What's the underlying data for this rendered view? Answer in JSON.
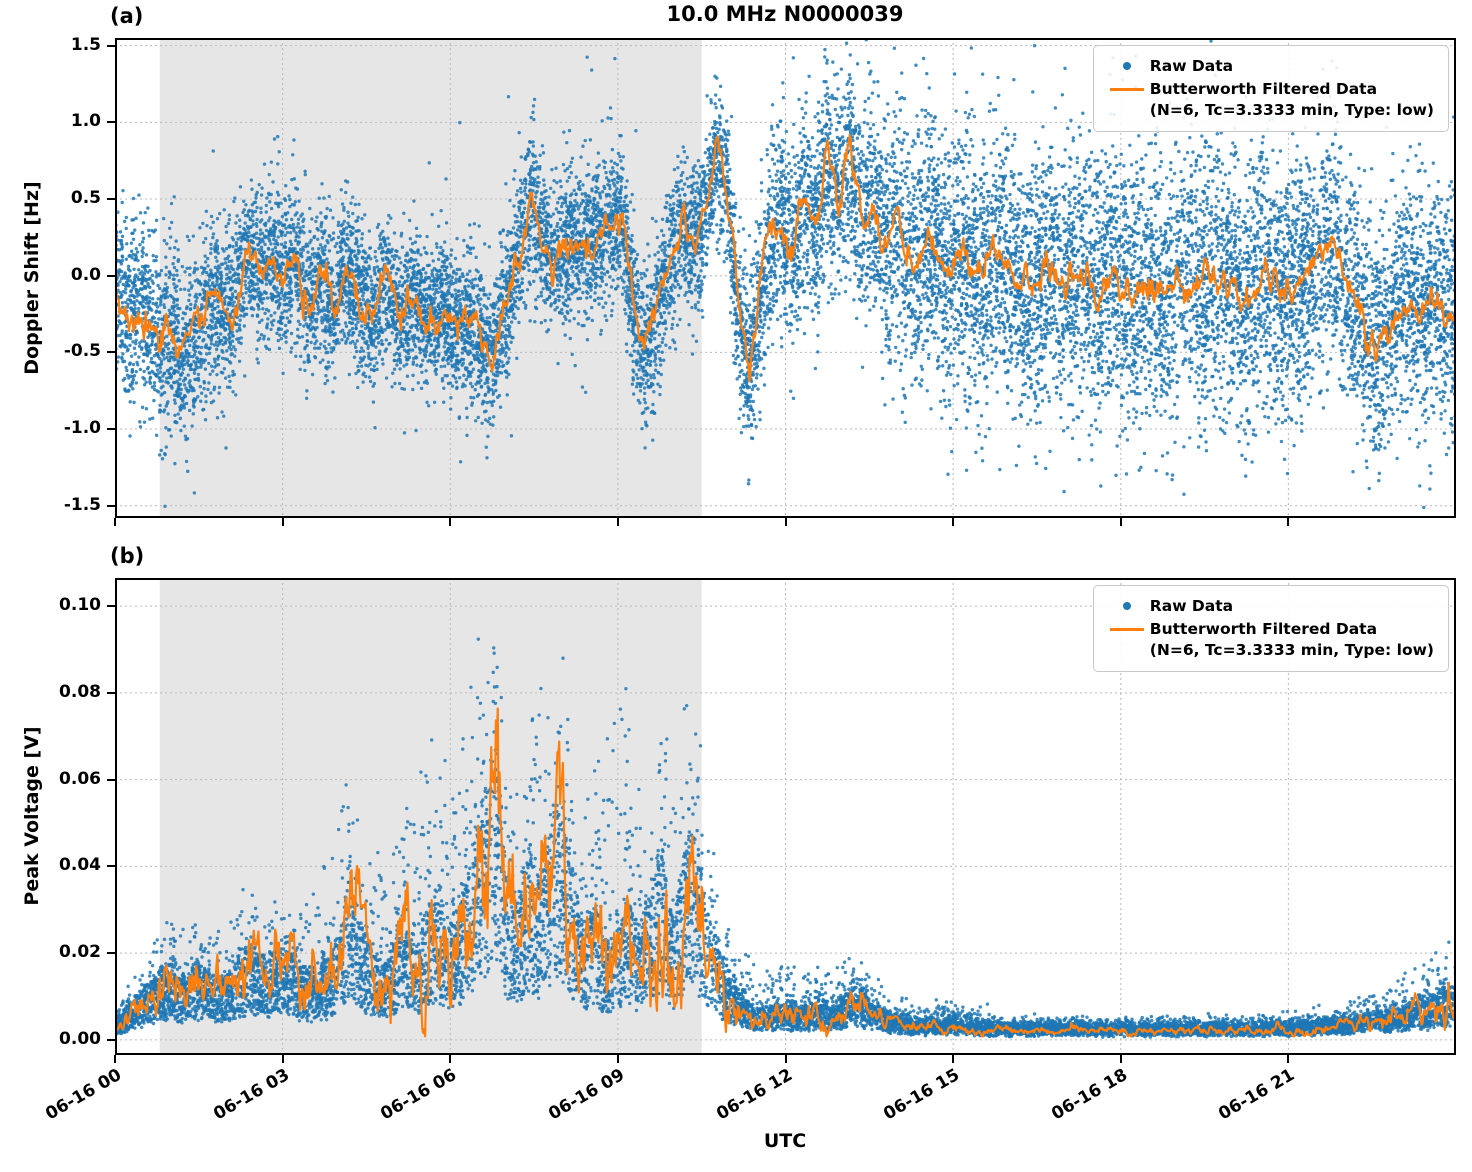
{
  "figure": {
    "title": "10.0 MHz N0000039",
    "panel_a_label": "(a)",
    "panel_b_label": "(b)",
    "xlabel": "UTC",
    "colors": {
      "raw": "#1f77b4",
      "filtered": "#ff7f0e",
      "shade": "#e6e6e6",
      "grid": "#b9b9b9",
      "text": "#000000"
    },
    "legend": {
      "raw_label": "Raw Data",
      "filtered_label": "Butterworth Filtered Data",
      "filtered_sublabel": "(N=6, Tc=3.3333 min, Type: low)"
    }
  },
  "chart_data": [
    {
      "type": "scatter",
      "panel": "a",
      "title": "10.0 MHz N0000039",
      "ylabel": "Doppler Shift [Hz]",
      "xlabel": "UTC",
      "xlim_hours": [
        0,
        24
      ],
      "ylim": [
        -1.58,
        1.55
      ],
      "yticks": [
        -1.5,
        -1.0,
        -0.5,
        0.0,
        0.5,
        1.0,
        1.5
      ],
      "ytick_labels": [
        "-1.5",
        "-1.0",
        "-0.5",
        "0.0",
        "0.5",
        "1.0",
        "1.5"
      ],
      "xticks_hours": [
        0,
        3,
        6,
        9,
        12,
        15,
        18,
        21
      ],
      "xtick_labels": [],
      "grid": true,
      "legend_position": "upper right",
      "shaded_region_hours": [
        0.8,
        10.5
      ],
      "series": [
        {
          "name": "Raw Data",
          "type": "scatter",
          "color": "#1f77b4",
          "n": 16000,
          "seed": 42,
          "dist": "gaussian",
          "spread_envelope": [
            [
              0,
              0.3
            ],
            [
              1,
              0.32
            ],
            [
              2,
              0.27
            ],
            [
              3,
              0.25
            ],
            [
              4,
              0.24
            ],
            [
              5,
              0.23
            ],
            [
              6,
              0.24
            ],
            [
              7,
              0.25
            ],
            [
              8,
              0.25
            ],
            [
              9,
              0.25
            ],
            [
              10,
              0.24
            ],
            [
              10.8,
              0.22
            ],
            [
              11.5,
              0.3
            ],
            [
              12,
              0.33
            ],
            [
              13,
              0.33
            ],
            [
              14,
              0.38
            ],
            [
              15,
              0.42
            ],
            [
              16,
              0.44
            ],
            [
              17,
              0.44
            ],
            [
              18,
              0.44
            ],
            [
              19,
              0.44
            ],
            [
              20,
              0.44
            ],
            [
              21,
              0.42
            ],
            [
              22,
              0.4
            ],
            [
              23,
              0.38
            ],
            [
              24,
              0.36
            ]
          ]
        },
        {
          "name": "Butterworth Filtered Data (N=6, Tc=3.3333 min, Type: low)",
          "type": "line",
          "color": "#ff7f0e",
          "jitter": 0.09,
          "jitter_mode": "add",
          "points": [
            [
              0,
              -0.08
            ],
            [
              0.3,
              -0.3
            ],
            [
              0.55,
              -0.2
            ],
            [
              0.8,
              -0.5
            ],
            [
              1.0,
              -0.38
            ],
            [
              1.2,
              -0.55
            ],
            [
              1.5,
              -0.3
            ],
            [
              1.8,
              -0.12
            ],
            [
              2.1,
              -0.25
            ],
            [
              2.35,
              0.18
            ],
            [
              2.6,
              0.02
            ],
            [
              2.8,
              0.15
            ],
            [
              3.0,
              -0.05
            ],
            [
              3.2,
              0.12
            ],
            [
              3.45,
              -0.18
            ],
            [
              3.7,
              0.0
            ],
            [
              3.9,
              -0.22
            ],
            [
              4.1,
              0.05
            ],
            [
              4.35,
              -0.12
            ],
            [
              4.6,
              -0.3
            ],
            [
              4.85,
              -0.05
            ],
            [
              5.1,
              -0.28
            ],
            [
              5.35,
              -0.12
            ],
            [
              5.6,
              -0.3
            ],
            [
              5.85,
              -0.18
            ],
            [
              6.1,
              -0.35
            ],
            [
              6.4,
              -0.3
            ],
            [
              6.7,
              -0.55
            ],
            [
              6.95,
              -0.25
            ],
            [
              7.2,
              0.12
            ],
            [
              7.45,
              0.5
            ],
            [
              7.65,
              0.25
            ],
            [
              7.85,
              0.02
            ],
            [
              8.1,
              0.22
            ],
            [
              8.35,
              0.15
            ],
            [
              8.6,
              0.28
            ],
            [
              8.85,
              0.35
            ],
            [
              9.05,
              0.42
            ],
            [
              9.25,
              -0.15
            ],
            [
              9.45,
              -0.5
            ],
            [
              9.65,
              -0.28
            ],
            [
              9.9,
              0.05
            ],
            [
              10.15,
              0.3
            ],
            [
              10.45,
              0.22
            ],
            [
              10.75,
              0.78
            ],
            [
              10.95,
              0.6
            ],
            [
              11.15,
              -0.2
            ],
            [
              11.35,
              -0.62
            ],
            [
              11.55,
              -0.1
            ],
            [
              11.75,
              0.25
            ],
            [
              11.95,
              0.35
            ],
            [
              12.15,
              0.18
            ],
            [
              12.35,
              0.55
            ],
            [
              12.55,
              0.3
            ],
            [
              12.75,
              0.78
            ],
            [
              12.95,
              0.45
            ],
            [
              13.15,
              0.85
            ],
            [
              13.35,
              0.35
            ],
            [
              13.55,
              0.52
            ],
            [
              13.75,
              0.22
            ],
            [
              14.0,
              0.32
            ],
            [
              14.3,
              0.08
            ],
            [
              14.6,
              0.25
            ],
            [
              14.9,
              -0.02
            ],
            [
              15.2,
              0.14
            ],
            [
              15.5,
              -0.02
            ],
            [
              15.8,
              0.18
            ],
            [
              16.1,
              0.02
            ],
            [
              16.4,
              -0.08
            ],
            [
              16.7,
              0.1
            ],
            [
              17.0,
              -0.06
            ],
            [
              17.3,
              0.06
            ],
            [
              17.6,
              -0.12
            ],
            [
              17.9,
              0.02
            ],
            [
              18.2,
              -0.15
            ],
            [
              18.5,
              -0.04
            ],
            [
              18.8,
              -0.2
            ],
            [
              19.1,
              0.02
            ],
            [
              19.4,
              -0.12
            ],
            [
              19.7,
              0.06
            ],
            [
              20.0,
              -0.06
            ],
            [
              20.3,
              -0.16
            ],
            [
              20.6,
              0.0
            ],
            [
              20.9,
              -0.12
            ],
            [
              21.2,
              -0.04
            ],
            [
              21.5,
              0.1
            ],
            [
              21.8,
              0.26
            ],
            [
              22.0,
              0.0
            ],
            [
              22.3,
              -0.28
            ],
            [
              22.55,
              -0.52
            ],
            [
              22.8,
              -0.3
            ],
            [
              23.0,
              -0.12
            ],
            [
              23.3,
              -0.22
            ],
            [
              23.6,
              -0.12
            ],
            [
              23.95,
              -0.28
            ]
          ]
        }
      ]
    },
    {
      "type": "scatter",
      "panel": "b",
      "ylabel": "Peak Voltage [V]",
      "xlabel": "UTC",
      "xlim_hours": [
        0,
        24
      ],
      "ylim": [
        -0.0035,
        0.1065
      ],
      "yticks": [
        0.0,
        0.02,
        0.04,
        0.06,
        0.08,
        0.1
      ],
      "ytick_labels": [
        "0.00",
        "0.02",
        "0.04",
        "0.06",
        "0.08",
        "0.10"
      ],
      "xticks_hours": [
        0,
        3,
        6,
        9,
        12,
        15,
        18,
        21
      ],
      "xtick_labels": [
        "06-16 00",
        "06-16 03",
        "06-16 06",
        "06-16 09",
        "06-16 12",
        "06-16 15",
        "06-16 18",
        "06-16 21"
      ],
      "grid": true,
      "legend_position": "upper right",
      "shaded_region_hours": [
        0.8,
        10.5
      ],
      "series": [
        {
          "name": "Raw Data",
          "type": "scatter",
          "color": "#1f77b4",
          "n": 12000,
          "seed": 7,
          "dist": "band",
          "spike_envelope": [
            [
              0,
              0.004
            ],
            [
              0.5,
              0.008
            ],
            [
              1,
              0.012
            ],
            [
              1.5,
              0.012
            ],
            [
              2,
              0.014
            ],
            [
              2.5,
              0.022
            ],
            [
              3,
              0.015
            ],
            [
              3.5,
              0.02
            ],
            [
              4,
              0.038
            ],
            [
              4.5,
              0.024
            ],
            [
              5,
              0.03
            ],
            [
              5.5,
              0.042
            ],
            [
              6,
              0.038
            ],
            [
              6.5,
              0.06
            ],
            [
              6.8,
              0.045
            ],
            [
              7.2,
              0.04
            ],
            [
              7.5,
              0.05
            ],
            [
              7.8,
              0.042
            ],
            [
              8,
              0.038
            ],
            [
              8.5,
              0.03
            ],
            [
              9,
              0.062
            ],
            [
              9.5,
              0.03
            ],
            [
              10,
              0.042
            ],
            [
              10.3,
              0.038
            ],
            [
              10.6,
              0.03
            ],
            [
              11,
              0.012
            ],
            [
              11.5,
              0.01
            ],
            [
              12,
              0.012
            ],
            [
              12.5,
              0.008
            ],
            [
              13,
              0.012
            ],
            [
              13.5,
              0.009
            ],
            [
              14,
              0.005
            ],
            [
              14.5,
              0.004
            ],
            [
              15,
              0.005
            ],
            [
              16,
              0.002
            ],
            [
              17,
              0.0015
            ],
            [
              18,
              0.0015
            ],
            [
              19,
              0.0015
            ],
            [
              20,
              0.0015
            ],
            [
              21,
              0.002
            ],
            [
              22,
              0.004
            ],
            [
              23,
              0.008
            ],
            [
              23.9,
              0.011
            ]
          ]
        },
        {
          "name": "Butterworth Filtered Data (N=6, Tc=3.3333 min, Type: low)",
          "type": "line",
          "color": "#ff7f0e",
          "jitter": 0.4,
          "jitter_mode": "mult",
          "clamp_min": 0.0008,
          "points": [
            [
              0,
              0.003
            ],
            [
              0.3,
              0.006
            ],
            [
              0.6,
              0.01
            ],
            [
              0.9,
              0.013
            ],
            [
              1.2,
              0.011
            ],
            [
              1.5,
              0.014
            ],
            [
              1.8,
              0.011
            ],
            [
              2.1,
              0.012
            ],
            [
              2.4,
              0.017
            ],
            [
              2.7,
              0.014
            ],
            [
              3.0,
              0.018
            ],
            [
              3.3,
              0.013
            ],
            [
              3.6,
              0.012
            ],
            [
              3.9,
              0.016
            ],
            [
              4.2,
              0.03
            ],
            [
              4.5,
              0.018
            ],
            [
              4.8,
              0.013
            ],
            [
              5.1,
              0.02
            ],
            [
              5.4,
              0.016
            ],
            [
              5.7,
              0.028
            ],
            [
              6.0,
              0.021
            ],
            [
              6.3,
              0.03
            ],
            [
              6.6,
              0.044
            ],
            [
              6.8,
              0.059
            ],
            [
              7.0,
              0.03
            ],
            [
              7.2,
              0.024
            ],
            [
              7.4,
              0.035
            ],
            [
              7.6,
              0.029
            ],
            [
              7.8,
              0.04
            ],
            [
              8.0,
              0.044
            ],
            [
              8.2,
              0.029
            ],
            [
              8.4,
              0.021
            ],
            [
              8.6,
              0.025
            ],
            [
              8.8,
              0.016
            ],
            [
              9.0,
              0.02
            ],
            [
              9.2,
              0.026
            ],
            [
              9.4,
              0.019
            ],
            [
              9.6,
              0.028
            ],
            [
              9.8,
              0.034
            ],
            [
              10.0,
              0.021
            ],
            [
              10.3,
              0.042
            ],
            [
              10.6,
              0.024
            ],
            [
              10.9,
              0.014
            ],
            [
              11.1,
              0.009
            ],
            [
              11.4,
              0.006
            ],
            [
              11.7,
              0.005
            ],
            [
              12.0,
              0.006
            ],
            [
              12.3,
              0.005
            ],
            [
              12.6,
              0.007
            ],
            [
              12.9,
              0.005
            ],
            [
              13.2,
              0.01
            ],
            [
              13.5,
              0.007
            ],
            [
              13.8,
              0.004
            ],
            [
              14.1,
              0.003
            ],
            [
              14.5,
              0.0025
            ],
            [
              15.0,
              0.003
            ],
            [
              15.5,
              0.002
            ],
            [
              16.0,
              0.002
            ],
            [
              16.5,
              0.0018
            ],
            [
              17.0,
              0.002
            ],
            [
              17.5,
              0.0018
            ],
            [
              18.0,
              0.002
            ],
            [
              18.5,
              0.0018
            ],
            [
              19.0,
              0.002
            ],
            [
              19.5,
              0.002
            ],
            [
              20.0,
              0.002
            ],
            [
              20.5,
              0.002
            ],
            [
              21.0,
              0.0022
            ],
            [
              21.5,
              0.0026
            ],
            [
              22.0,
              0.003
            ],
            [
              22.5,
              0.004
            ],
            [
              23.0,
              0.005
            ],
            [
              23.5,
              0.007
            ],
            [
              23.9,
              0.009
            ]
          ]
        }
      ]
    }
  ]
}
